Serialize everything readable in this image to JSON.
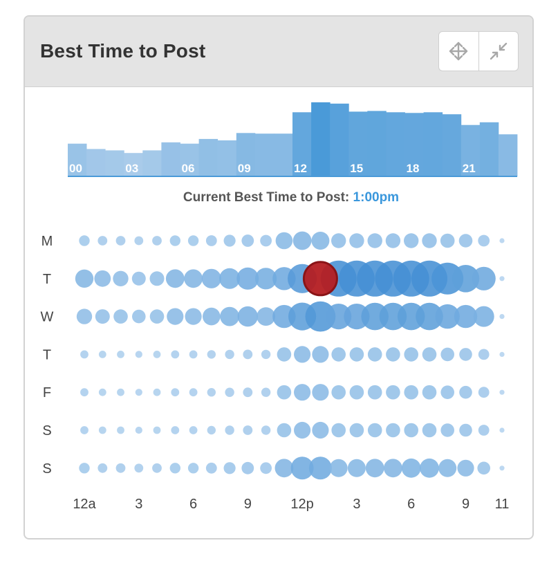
{
  "widget": {
    "title": "Best Time to Post",
    "buttons": [
      {
        "name": "move-button",
        "icon": "move-arrows-icon"
      },
      {
        "name": "collapse-button",
        "icon": "collapse-arrows-icon"
      }
    ]
  },
  "chart_data": [
    {
      "type": "bar",
      "categories": [
        "00",
        "01",
        "02",
        "03",
        "04",
        "05",
        "06",
        "07",
        "08",
        "09",
        "10",
        "11",
        "12",
        "13",
        "14",
        "15",
        "16",
        "17",
        "18",
        "19",
        "20",
        "21",
        "22",
        "23"
      ],
      "tick_labels": [
        "00",
        "03",
        "06",
        "09",
        "12",
        "15",
        "18",
        "21"
      ],
      "values": [
        49,
        41,
        39,
        35,
        39,
        51,
        49,
        56,
        54,
        65,
        64,
        64,
        96,
        111,
        109,
        97,
        98,
        96,
        95,
        96,
        93,
        77,
        81,
        63
      ],
      "ylim": [
        0,
        115
      ],
      "highlight_index": 13,
      "colors": {
        "bar_base": "#a9cbea",
        "bar_strong": "#4a9ad8",
        "baseline": "#4a9ad8"
      },
      "summary_label": "Current Best Time to Post:",
      "summary_value": "1:00pm",
      "summary_value_color": "#3a97dc"
    },
    {
      "type": "bubble-grid",
      "rows": [
        "M",
        "T",
        "W",
        "T",
        "F",
        "S",
        "S"
      ],
      "x_tick_labels": [
        "12a",
        "3",
        "6",
        "9",
        "12p",
        "3",
        "6",
        "9",
        "11"
      ],
      "x_tick_hours": [
        0,
        3,
        6,
        9,
        12,
        15,
        18,
        21,
        23
      ],
      "values": [
        [
          15,
          12,
          12,
          10,
          12,
          15,
          15,
          16,
          19,
          20,
          18,
          35,
          40,
          38,
          28,
          28,
          28,
          28,
          28,
          28,
          26,
          24,
          18,
          0
        ],
        [
          39,
          33,
          30,
          25,
          27,
          40,
          40,
          43,
          47,
          52,
          50,
          55,
          76,
          90,
          100,
          100,
          100,
          100,
          100,
          100,
          85,
          70,
          57,
          0
        ],
        [
          30,
          27,
          26,
          24,
          26,
          34,
          34,
          37,
          42,
          46,
          40,
          55,
          71,
          80,
          64,
          64,
          70,
          70,
          70,
          70,
          60,
          55,
          47,
          0
        ],
        [
          8,
          6,
          6,
          5,
          6,
          8,
          8,
          9,
          11,
          12,
          11,
          26,
          34,
          34,
          26,
          26,
          26,
          26,
          26,
          26,
          24,
          22,
          16,
          0
        ],
        [
          8,
          6,
          6,
          5,
          6,
          8,
          8,
          9,
          11,
          12,
          11,
          26,
          34,
          34,
          26,
          26,
          26,
          26,
          26,
          26,
          24,
          22,
          16,
          0
        ],
        [
          8,
          6,
          6,
          5,
          6,
          8,
          8,
          9,
          11,
          12,
          11,
          26,
          34,
          34,
          26,
          26,
          26,
          26,
          26,
          26,
          24,
          22,
          16,
          0
        ],
        [
          15,
          12,
          12,
          10,
          12,
          15,
          15,
          16,
          19,
          20,
          18,
          40,
          54,
          54,
          38,
          38,
          40,
          40,
          42,
          42,
          38,
          34,
          22,
          0
        ]
      ],
      "best_slot": {
        "row": 1,
        "hour": 13
      },
      "colors": {
        "bubble_light": "#b4d3ef",
        "bubble_strong": "#3b8ad2",
        "best": "#b41e22",
        "best_ring": "#8a1417"
      }
    }
  ]
}
